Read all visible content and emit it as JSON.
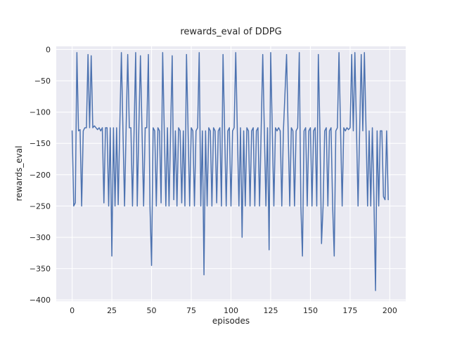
{
  "chart_data": {
    "type": "line",
    "title": "rewards_eval of DDPG",
    "xlabel": "episodes",
    "ylabel": "rewards_eval",
    "xlim": [
      -10,
      210
    ],
    "ylim": [
      -402,
      5
    ],
    "xticks": [
      0,
      25,
      50,
      75,
      100,
      125,
      150,
      175,
      200
    ],
    "yticks": [
      0,
      -50,
      -100,
      -150,
      -200,
      -250,
      -300,
      -350,
      -400
    ],
    "grid": true,
    "legend": "none",
    "line_color": "#4c72b0",
    "axes_bg_color": "#eaeaf2",
    "grid_color": "#ffffff",
    "text_color": "#262626",
    "series": [
      {
        "name": "rewards_eval",
        "x_start": 0,
        "x_step": 1,
        "values": [
          -130,
          -250,
          -245,
          -5,
          -130,
          -128,
          -250,
          -130,
          -125,
          -125,
          -8,
          -125,
          -10,
          -125,
          -122,
          -125,
          -128,
          -125,
          -130,
          -125,
          -245,
          -125,
          -125,
          -250,
          -125,
          -330,
          -125,
          -250,
          -125,
          -248,
          -125,
          -5,
          -130,
          -250,
          -125,
          -8,
          -125,
          -125,
          -250,
          -130,
          -5,
          -250,
          -125,
          -10,
          -130,
          -250,
          -125,
          -125,
          -8,
          -250,
          -345,
          -125,
          -130,
          -250,
          -125,
          -130,
          -245,
          -5,
          -130,
          -250,
          -125,
          -250,
          -130,
          -10,
          -240,
          -130,
          -250,
          -125,
          -130,
          -245,
          -130,
          -250,
          -8,
          -130,
          -250,
          -125,
          -130,
          -250,
          -130,
          -125,
          -5,
          -250,
          -130,
          -360,
          -130,
          -250,
          -125,
          -130,
          -250,
          -125,
          -130,
          -245,
          -130,
          -125,
          -250,
          -8,
          -130,
          -250,
          -130,
          -125,
          -250,
          -130,
          -125,
          -5,
          -130,
          -250,
          -125,
          -300,
          -130,
          -250,
          -125,
          -130,
          -250,
          -130,
          -125,
          -250,
          -130,
          -125,
          -250,
          -130,
          -8,
          -130,
          -250,
          -125,
          -320,
          -5,
          -130,
          -250,
          -125,
          -130,
          -125,
          -130,
          -250,
          -130,
          -70,
          -8,
          -130,
          -250,
          -125,
          -130,
          -250,
          -130,
          -125,
          -5,
          -250,
          -330,
          -130,
          -125,
          -250,
          -130,
          -125,
          -250,
          -130,
          -125,
          -250,
          -8,
          -130,
          -310,
          -250,
          -130,
          -125,
          -250,
          -130,
          -125,
          -250,
          -330,
          -130,
          -125,
          -5,
          -130,
          -250,
          -125,
          -130,
          -125,
          -128,
          -125,
          -8,
          -130,
          -5,
          -125,
          -250,
          -130,
          -8,
          -130,
          -5,
          -125,
          -250,
          -130,
          -250,
          -125,
          -240,
          -385,
          -130,
          -250,
          -130,
          -130,
          -235,
          -240,
          -130,
          -240
        ]
      }
    ]
  }
}
